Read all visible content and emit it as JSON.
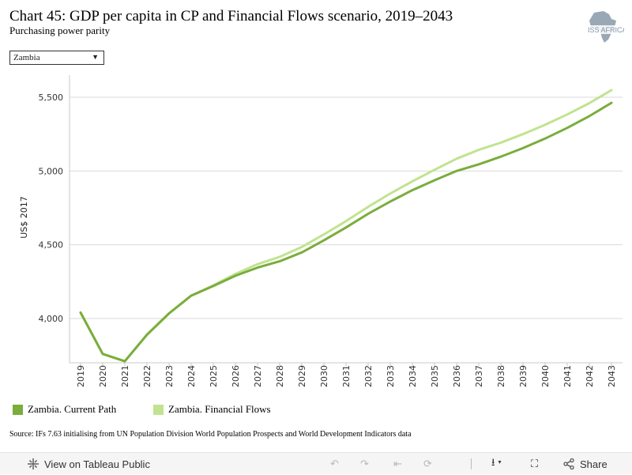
{
  "header": {
    "title": "Chart 45: GDP per capita in CP and Financial Flows scenario, 2019–2043",
    "subtitle": "Purchasing power parity",
    "logo_text": "ISS AFRICA"
  },
  "filter": {
    "selected": "Zambia",
    "arrow_icon": "dropdown-triangle-icon"
  },
  "chart_data": {
    "type": "line",
    "title": "Chart 45: GDP per capita in CP and Financial Flows scenario, 2019–2043",
    "subtitle": "Purchasing power parity",
    "xlabel": "",
    "ylabel": "US$ 2017",
    "x": [
      "2019",
      "2020",
      "2021",
      "2022",
      "2023",
      "2024",
      "2025",
      "2026",
      "2027",
      "2028",
      "2029",
      "2030",
      "2031",
      "2032",
      "2033",
      "2034",
      "2035",
      "2036",
      "2037",
      "2038",
      "2039",
      "2040",
      "2041",
      "2042",
      "2043"
    ],
    "ylim": [
      3700,
      5650
    ],
    "yticks": [
      4000,
      4500,
      5000,
      5500
    ],
    "ytick_labels": [
      "4,000",
      "4,500",
      "5,000",
      "5,500"
    ],
    "grid": "horizontal",
    "legend_placement": "bottom-left",
    "series": [
      {
        "name": "Zambia. Current Path",
        "color": "#7aad3c",
        "values": [
          4040,
          3760,
          3710,
          3890,
          4035,
          4155,
          4220,
          4290,
          4345,
          4388,
          4448,
          4530,
          4617,
          4710,
          4793,
          4870,
          4937,
          5000,
          5045,
          5097,
          5155,
          5220,
          5292,
          5372,
          5462
        ]
      },
      {
        "name": "Zambia. Financial Flows",
        "color": "#c1e390",
        "values": [
          4040,
          3760,
          3710,
          3890,
          4035,
          4155,
          4225,
          4302,
          4368,
          4418,
          4485,
          4570,
          4660,
          4757,
          4847,
          4930,
          5008,
          5083,
          5143,
          5192,
          5250,
          5313,
          5383,
          5460,
          5548
        ]
      }
    ]
  },
  "source": "Source: IFs 7.63 initialising from UN Population Division World Population Prospects and World Development Indicators data",
  "toolbar": {
    "view_label": "View on Tableau Public",
    "share_label": "Share",
    "icons": [
      "tableau-icon",
      "undo-icon",
      "redo-icon",
      "revert-icon",
      "refresh-icon",
      "download-icon",
      "fullscreen-icon",
      "share-icon"
    ]
  }
}
